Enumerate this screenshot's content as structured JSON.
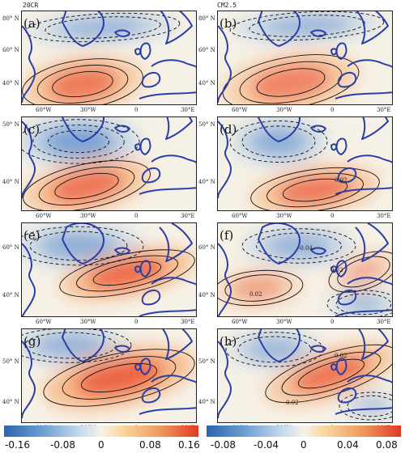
{
  "column_titles": {
    "left": "20CR",
    "right": "CM2.5"
  },
  "panel_labels": [
    "(a)",
    "(b)",
    "(c)",
    "(d)",
    "(e)",
    "(f)",
    "(g)",
    "(h)"
  ],
  "lon_ticks": [
    "60°W",
    "30°W",
    "0",
    "30°E"
  ],
  "lat_ticks": {
    "row1": [
      "80° N",
      "60° N",
      "40° N"
    ],
    "row2": [
      "50° N",
      "40° N"
    ],
    "row3": [
      "60° N",
      "40° N"
    ],
    "row4": [
      "50° N",
      "40° N"
    ]
  },
  "contour_labels": {
    "f_upper": "-0.04",
    "f_right": "0.02",
    "f_lower": "0.02",
    "h_upper": "0.02",
    "h_lower": "0.02",
    "d_small": "0.02"
  },
  "colorbars": {
    "left": {
      "labels": [
        "-0.16",
        "-0.08",
        "0",
        "0.08",
        "0.16"
      ]
    },
    "right": {
      "labels": [
        "-0.08",
        "-0.04",
        "0",
        "0.04",
        "0.08"
      ]
    }
  },
  "colors": {
    "coast": "#2a3fa6",
    "neg": "#3f76c4",
    "pos": "#e8452b",
    "neutral": "#f6f1e6"
  }
}
